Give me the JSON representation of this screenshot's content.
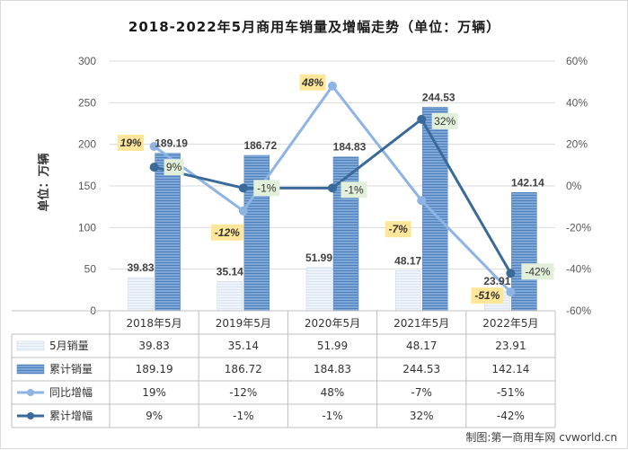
{
  "title": "2018-2022年5月商用车销量及增幅走势（单位：万辆）",
  "y_axis_label": "单位：万辆",
  "credit": "制图:第一商用车网 cvworld.cn",
  "colors": {
    "monthly_bar": "#dce6f2",
    "cumulative_bar": "#4f81bd",
    "yoy_line": "#8db4e2",
    "cum_growth_line": "#3a6a9a",
    "yoy_label_bg": "#ffe699",
    "cum_label_bg": "#e2efda"
  },
  "chart_data": {
    "type": "bar",
    "title": "2018-2022年5月商用车销量及增幅走势（单位：万辆）",
    "ylabel": "单位：万辆",
    "ylim": [
      0,
      300
    ],
    "yticks": [
      "0",
      "50",
      "100",
      "150",
      "200",
      "250",
      "300"
    ],
    "y2lim": [
      -60,
      60
    ],
    "y2ticks": [
      "-60%",
      "-40%",
      "-20%",
      "0%",
      "20%",
      "40%",
      "60%"
    ],
    "grid": true,
    "legend": "table-bottom",
    "categories": [
      "2018年5月",
      "2019年5月",
      "2020年5月",
      "2021年5月",
      "2022年5月"
    ],
    "series": [
      {
        "name": "5月销量",
        "kind": "bar",
        "values": [
          39.83,
          35.14,
          51.99,
          48.17,
          23.91
        ],
        "labels": [
          "39.83",
          "35.14",
          "51.99",
          "48.17",
          "23.91"
        ]
      },
      {
        "name": "累计销量",
        "kind": "bar",
        "values": [
          189.19,
          186.72,
          184.83,
          244.53,
          142.14
        ],
        "labels": [
          "189.19",
          "186.72",
          "184.83",
          "244.53",
          "142.14"
        ]
      },
      {
        "name": "同比增幅",
        "kind": "line",
        "axis": "right",
        "values": [
          19,
          -12,
          48,
          -7,
          -51
        ],
        "labels": [
          "19%",
          "-12%",
          "48%",
          "-7%",
          "-51%"
        ]
      },
      {
        "name": "累计增幅",
        "kind": "line",
        "axis": "right",
        "values": [
          9,
          -1,
          -1,
          32,
          -42
        ],
        "labels": [
          "9%",
          "-1%",
          "-1%",
          "32%",
          "-42%"
        ]
      }
    ]
  }
}
